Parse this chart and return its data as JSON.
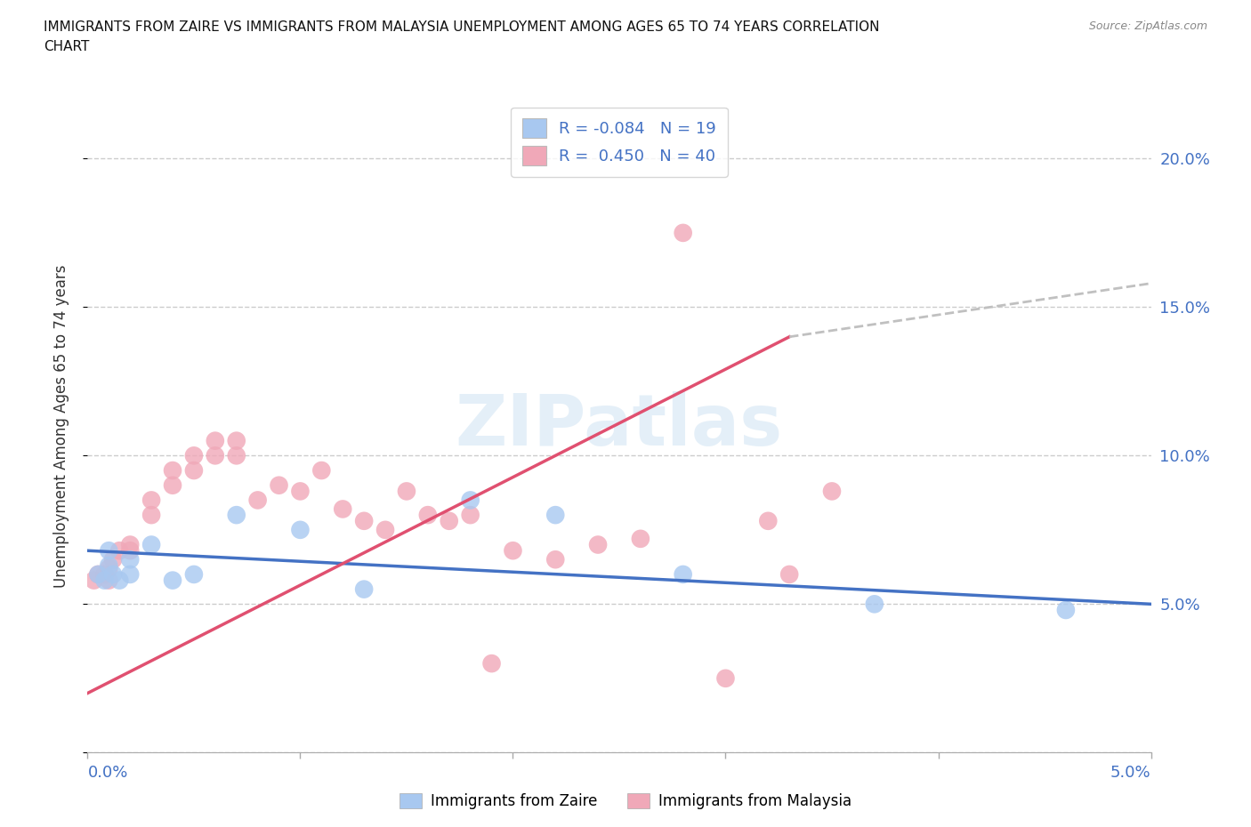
{
  "title": "IMMIGRANTS FROM ZAIRE VS IMMIGRANTS FROM MALAYSIA UNEMPLOYMENT AMONG AGES 65 TO 74 YEARS CORRELATION\nCHART",
  "source": "Source: ZipAtlas.com",
  "ylabel": "Unemployment Among Ages 65 to 74 years",
  "right_yticks": [
    "5.0%",
    "10.0%",
    "15.0%",
    "20.0%"
  ],
  "right_ytick_vals": [
    0.05,
    0.1,
    0.15,
    0.2
  ],
  "watermark": "ZIPatlas",
  "zaire_color": "#a8c8f0",
  "malaysia_color": "#f0a8b8",
  "zaire_R": -0.084,
  "zaire_N": 19,
  "malaysia_R": 0.45,
  "malaysia_N": 40,
  "zaire_line_color": "#4472c4",
  "malaysia_line_color": "#e05070",
  "trendline_extend_color": "#c0c0c0",
  "zaire_x": [
    0.0005,
    0.0008,
    0.001,
    0.001,
    0.0012,
    0.0015,
    0.002,
    0.002,
    0.003,
    0.004,
    0.005,
    0.007,
    0.01,
    0.013,
    0.018,
    0.022,
    0.028,
    0.037,
    0.046
  ],
  "zaire_y": [
    0.06,
    0.058,
    0.063,
    0.068,
    0.06,
    0.058,
    0.065,
    0.06,
    0.07,
    0.058,
    0.06,
    0.08,
    0.075,
    0.055,
    0.085,
    0.08,
    0.06,
    0.05,
    0.048
  ],
  "malaysia_x": [
    0.0003,
    0.0005,
    0.0008,
    0.001,
    0.001,
    0.0012,
    0.0015,
    0.002,
    0.002,
    0.003,
    0.003,
    0.004,
    0.004,
    0.005,
    0.005,
    0.006,
    0.006,
    0.007,
    0.007,
    0.008,
    0.009,
    0.01,
    0.011,
    0.012,
    0.013,
    0.014,
    0.015,
    0.016,
    0.017,
    0.018,
    0.019,
    0.02,
    0.022,
    0.024,
    0.026,
    0.028,
    0.03,
    0.032,
    0.033,
    0.035
  ],
  "malaysia_y": [
    0.058,
    0.06,
    0.06,
    0.062,
    0.058,
    0.065,
    0.068,
    0.068,
    0.07,
    0.08,
    0.085,
    0.09,
    0.095,
    0.095,
    0.1,
    0.1,
    0.105,
    0.1,
    0.105,
    0.085,
    0.09,
    0.088,
    0.095,
    0.082,
    0.078,
    0.075,
    0.088,
    0.08,
    0.078,
    0.08,
    0.03,
    0.068,
    0.065,
    0.07,
    0.072,
    0.175,
    0.025,
    0.078,
    0.06,
    0.088
  ],
  "xlim": [
    0.0,
    0.05
  ],
  "ylim": [
    0.0,
    0.22
  ],
  "figsize": [
    14.06,
    9.3
  ],
  "dpi": 100
}
